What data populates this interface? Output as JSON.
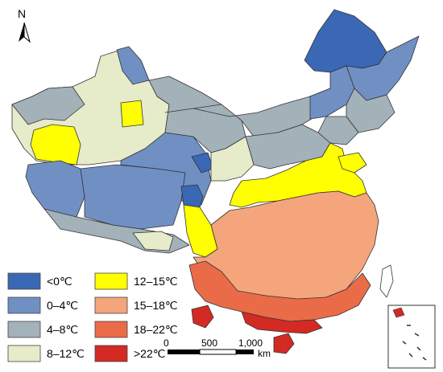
{
  "north_arrow": {
    "label": "N"
  },
  "legend": [
    {
      "label": "<0℃",
      "color": "#3a68b4"
    },
    {
      "label": "0–4℃",
      "color": "#7090c4"
    },
    {
      "label": "4–8℃",
      "color": "#a3b1b9"
    },
    {
      "label": "8–12℃",
      "color": "#e6ebca"
    },
    {
      "label": "12–15℃",
      "color": "#ffff00"
    },
    {
      "label": "15–18℃",
      "color": "#f4a57c"
    },
    {
      "label": "18–22℃",
      "color": "#ea6b47"
    },
    {
      "label": ">22℃",
      "color": "#d32a23"
    }
  ],
  "scale_bar": {
    "ticks": [
      "0",
      "500",
      "1,000"
    ],
    "unit": "km"
  }
}
